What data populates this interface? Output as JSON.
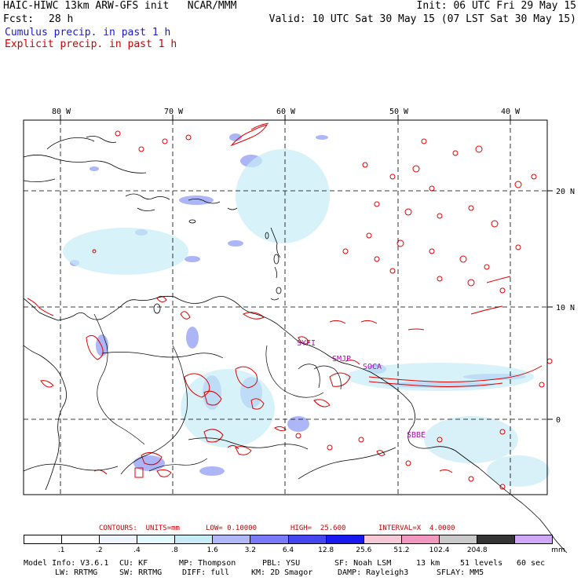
{
  "header": {
    "title": "HAIC-HIWC 13km ARW-GFS init   NCAR/MMM",
    "init": "Init: 06 UTC Fri 29 May 15",
    "fcst_label": "Fcst:",
    "fcst_value": "28 h",
    "valid": "Valid: 10 UTC Sat 30 May 15 (07 LST Sat 30 May 15)",
    "legend_cumulus": "Cumulus precip. in past 1 h",
    "legend_explicit": "Explicit precip. in past 1 h"
  },
  "map": {
    "lon_labels": [
      "80 W",
      "70 W",
      "60 W",
      "50 W",
      "40 W"
    ],
    "lat_labels": [
      "20 N",
      "10 N",
      "0"
    ],
    "stations": [
      "SYEI",
      "SMJP",
      "SOCA",
      "SBBE"
    ]
  },
  "contours": {
    "units_label": "CONTOURS:  UNITS=mm",
    "low": "LOW= 0.10000",
    "high": "HIGH=  25.600",
    "interval": "INTERVAL=X  4.0000"
  },
  "colorbar": {
    "labels": [
      ".1",
      ".2",
      ".4",
      ".8",
      "1.6",
      "3.2",
      "6.4",
      "12.8",
      "25.6",
      "51.2",
      "102.4",
      "204.8"
    ],
    "units": "mm",
    "colors": [
      "#ffffff",
      "#ffffff",
      "#f0f4ff",
      "#e4f8ff",
      "#c8ecf6",
      "#b0b8f8",
      "#7a7af8",
      "#4646f0",
      "#1818f0",
      "#f4c8d4",
      "#f098c0",
      "#c8c8c8",
      "#343434",
      "#d0a8f8"
    ]
  },
  "footer": {
    "line1": [
      "Model Info: V3.6.1",
      "CU: KF",
      "MP: Thompson",
      "PBL: YSU",
      "SF: Noah LSM",
      "13 km",
      "51 levels",
      "60 sec"
    ],
    "line2": [
      "LW: RRTMG",
      "SW: RRTMG",
      "DIFF: full",
      "KM: 2D Smagor",
      "DAMP: Rayleigh3",
      "SFLAY: MM5"
    ]
  }
}
